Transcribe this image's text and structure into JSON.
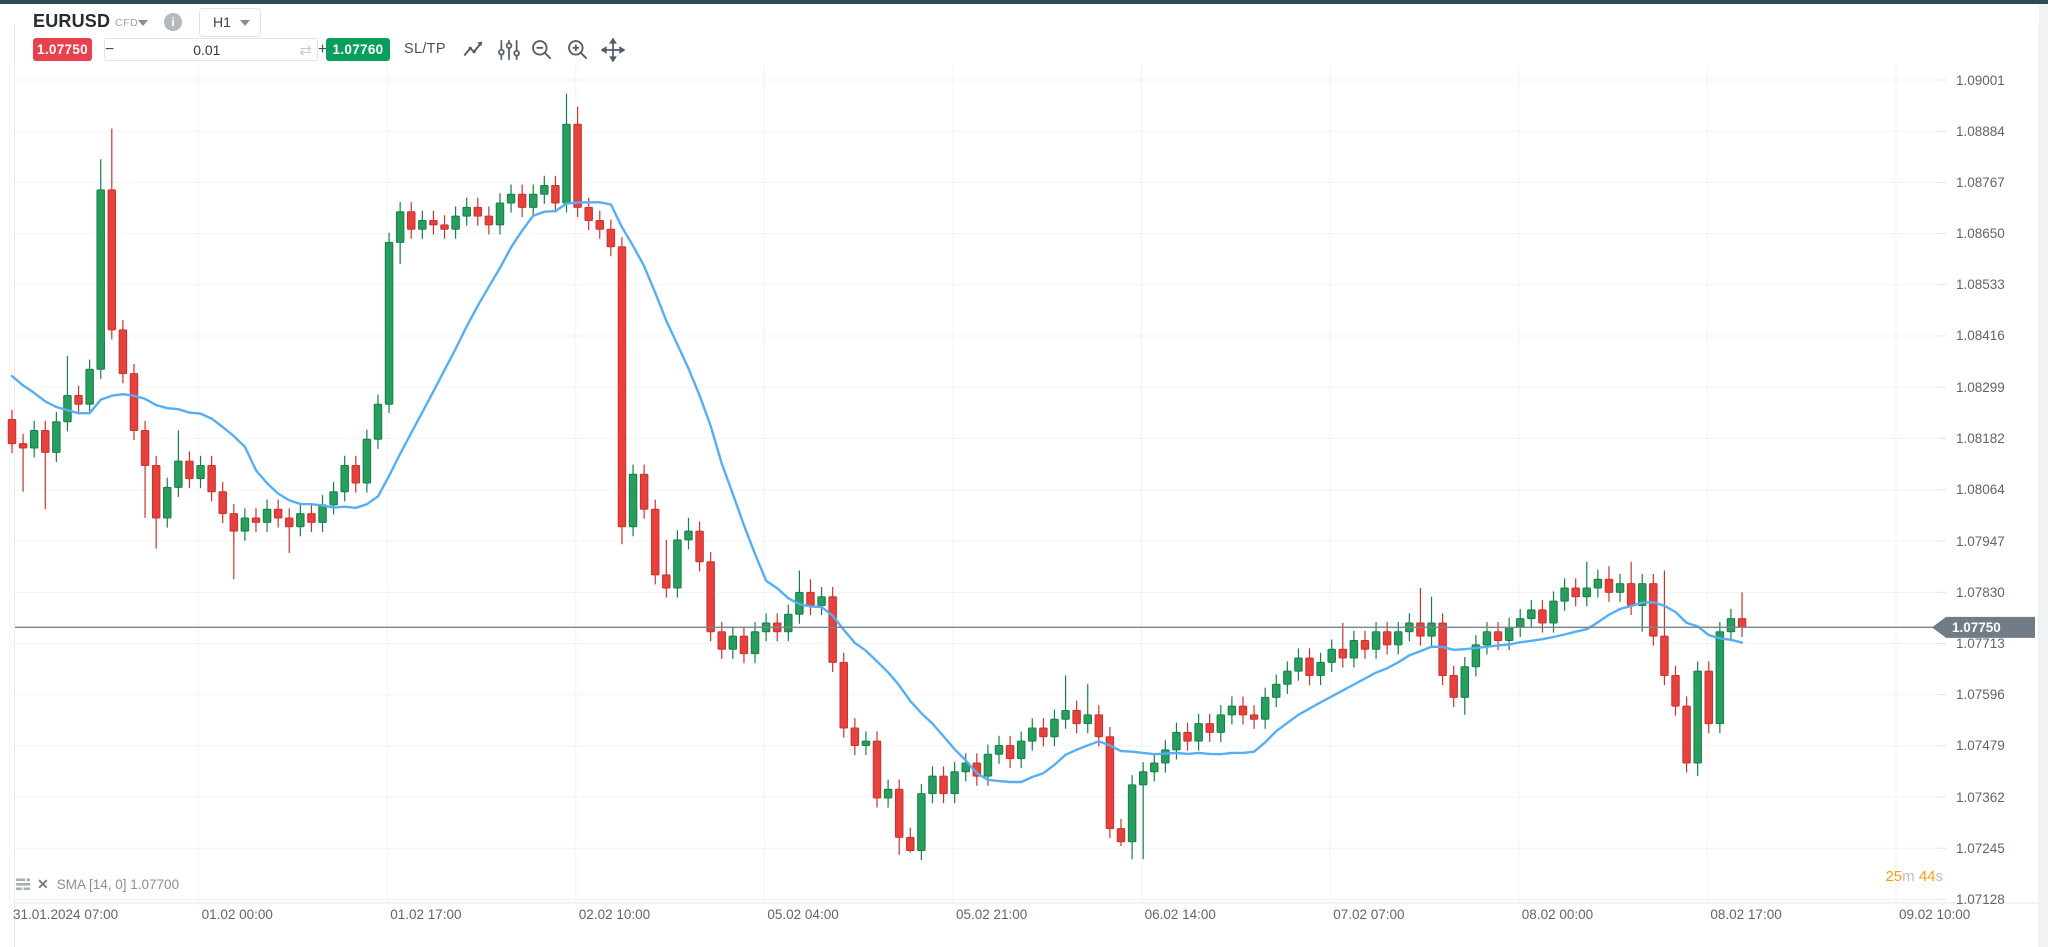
{
  "window": {
    "top_strip_color": "#2e4b54"
  },
  "header": {
    "symbol": "EURUSD",
    "instrument_type": "CFD",
    "timeframe": "H1",
    "info_glyph": "i"
  },
  "trade_panel": {
    "sell_price": "1.07750",
    "buy_price": "1.07760",
    "volume": "0.01",
    "minus_label": "−",
    "plus_label": "+",
    "sltp_label": "SL/TP",
    "sell_color": "#e7404e",
    "buy_color": "#089f5e"
  },
  "icons": {
    "sync": "⇄",
    "legend_close": "✕"
  },
  "legend": {
    "text": "SMA [14, 0] 1.07700"
  },
  "countdown": {
    "minutes": "25",
    "minutes_unit": "m",
    "seconds": "44",
    "seconds_unit": "s"
  },
  "price_line": {
    "label": "1.07750",
    "price": 1.0775,
    "line_color": "#7b858e",
    "tag_color": "#717c87"
  },
  "axes": {
    "price_ticks": [
      "1.09001",
      "1.08884",
      "1.08767",
      "1.08650",
      "1.08533",
      "1.08416",
      "1.08299",
      "1.08182",
      "1.08064",
      "1.07947",
      "1.07830",
      "1.07713",
      "1.07596",
      "1.07479",
      "1.07362",
      "1.07245",
      "1.07128"
    ],
    "time_ticks": [
      "31.01.2024 07:00",
      "01.02 00:00",
      "01.02 17:00",
      "02.02 10:00",
      "05.02 04:00",
      "05.02 21:00",
      "06.02 14:00",
      "07.02 07:00",
      "08.02 00:00",
      "08.02 17:00",
      "09.02 10:00"
    ]
  },
  "chart_data": {
    "type": "candlestick",
    "title": "EURUSD CFD H1",
    "ylim": [
      1.07128,
      1.09001
    ],
    "y_tick_step": 0.00117,
    "x_tick_labels": [
      "31.01.2024 07:00",
      "01.02 00:00",
      "01.02 17:00",
      "02.02 10:00",
      "05.02 04:00",
      "05.02 21:00",
      "06.02 14:00",
      "07.02 07:00",
      "08.02 00:00",
      "08.02 17:00",
      "09.02 10:00"
    ],
    "grid": true,
    "current_price": 1.0775,
    "indicator": {
      "name": "SMA",
      "period": 14,
      "shift": 0,
      "last_value": 1.077,
      "color": "#58aef3"
    },
    "colors": {
      "up": "#279d5e",
      "up_border": "#177f4a",
      "down": "#e6413c",
      "down_border": "#c63431",
      "grid": "#f0f3f5"
    },
    "first_open": 1.08225,
    "pre_closes": [
      1.0846,
      1.0844,
      1.0842,
      1.084,
      1.0838,
      1.0836,
      1.0834,
      1.0832,
      1.083,
      1.0828,
      1.0825,
      1.0822,
      1.082
    ],
    "closes": [
      1.0817,
      1.0816,
      1.082,
      1.0815,
      1.0822,
      1.0828,
      1.0826,
      1.0834,
      1.0875,
      1.0843,
      1.0833,
      1.082,
      1.0812,
      1.08,
      1.0807,
      1.0813,
      1.0809,
      1.0812,
      1.0806,
      1.0801,
      1.0797,
      1.08,
      1.0799,
      1.0802,
      1.08,
      1.0798,
      1.0801,
      1.0799,
      1.0803,
      1.0806,
      1.0812,
      1.0808,
      1.0818,
      1.0826,
      1.0863,
      1.087,
      1.0866,
      1.0868,
      1.0867,
      1.0866,
      1.0869,
      1.0871,
      1.0869,
      1.0867,
      1.0872,
      1.0874,
      1.0871,
      1.0874,
      1.0876,
      1.0872,
      1.089,
      1.0871,
      1.0868,
      1.0866,
      1.0862,
      1.0798,
      1.081,
      1.0802,
      1.0787,
      1.0784,
      1.0795,
      1.0797,
      1.079,
      1.0774,
      1.077,
      1.0773,
      1.0769,
      1.0774,
      1.0776,
      1.0774,
      1.0778,
      1.0783,
      1.078,
      1.0782,
      1.0767,
      1.0752,
      1.0748,
      1.0749,
      1.0736,
      1.0738,
      1.0727,
      1.0724,
      1.0737,
      1.0741,
      1.0737,
      1.0742,
      1.0744,
      1.0741,
      1.0746,
      1.0748,
      1.0745,
      1.0749,
      1.0752,
      1.075,
      1.0754,
      1.0756,
      1.0753,
      1.0755,
      1.075,
      1.0729,
      1.0726,
      1.0739,
      1.0742,
      1.0744,
      1.0747,
      1.0751,
      1.0749,
      1.0753,
      1.0751,
      1.0755,
      1.0757,
      1.0755,
      1.0754,
      1.0759,
      1.0762,
      1.0765,
      1.0768,
      1.0764,
      1.0767,
      1.077,
      1.0768,
      1.0772,
      1.077,
      1.0774,
      1.0771,
      1.0774,
      1.0776,
      1.0773,
      1.0776,
      1.0764,
      1.0759,
      1.0766,
      1.0771,
      1.0774,
      1.0772,
      1.0775,
      1.0777,
      1.0779,
      1.0776,
      1.0781,
      1.0784,
      1.0782,
      1.0784,
      1.0786,
      1.0783,
      1.0785,
      1.078,
      1.0785,
      1.0773,
      1.0764,
      1.0757,
      1.0744,
      1.0765,
      1.0753,
      1.0774,
      1.0777,
      1.0775
    ],
    "default_wick": 0.00022,
    "wick_overrides": {
      "1": [
        null,
        1.0806
      ],
      "3": [
        null,
        1.0802
      ],
      "5": [
        1.0837,
        null
      ],
      "8": [
        1.0882,
        null
      ],
      "9": [
        1.0889,
        null
      ],
      "12": [
        null,
        1.08
      ],
      "13": [
        null,
        1.0793
      ],
      "15": [
        1.082,
        null
      ],
      "20": [
        null,
        1.0786
      ],
      "25": [
        null,
        1.0792
      ],
      "34": [
        null,
        1.0824
      ],
      "35": [
        null,
        1.0858
      ],
      "50": [
        1.0897,
        null
      ],
      "51": [
        1.0894,
        null
      ],
      "55": [
        null,
        1.0794
      ],
      "59": [
        1.0795,
        null
      ],
      "61": [
        1.08,
        null
      ],
      "71": [
        1.0788,
        null
      ],
      "72": [
        1.0786,
        null
      ],
      "80": [
        null,
        1.0723
      ],
      "81": [
        null,
        1.07235
      ],
      "95": [
        1.0764,
        null
      ],
      "97": [
        1.0762,
        null
      ],
      "100": [
        null,
        1.0725
      ],
      "101": [
        null,
        1.0722
      ],
      "102": [
        null,
        1.0722
      ],
      "120": [
        1.0776,
        null
      ],
      "127": [
        1.0784,
        null
      ],
      "128": [
        1.0782,
        null
      ],
      "131": [
        null,
        1.0755
      ],
      "142": [
        1.079,
        null
      ],
      "144": [
        1.0789,
        null
      ],
      "146": [
        1.079,
        null
      ],
      "147": [
        null,
        1.0774
      ],
      "149": [
        1.0788,
        null
      ],
      "152": [
        null,
        1.0741
      ],
      "156": [
        1.0783,
        null
      ]
    }
  }
}
